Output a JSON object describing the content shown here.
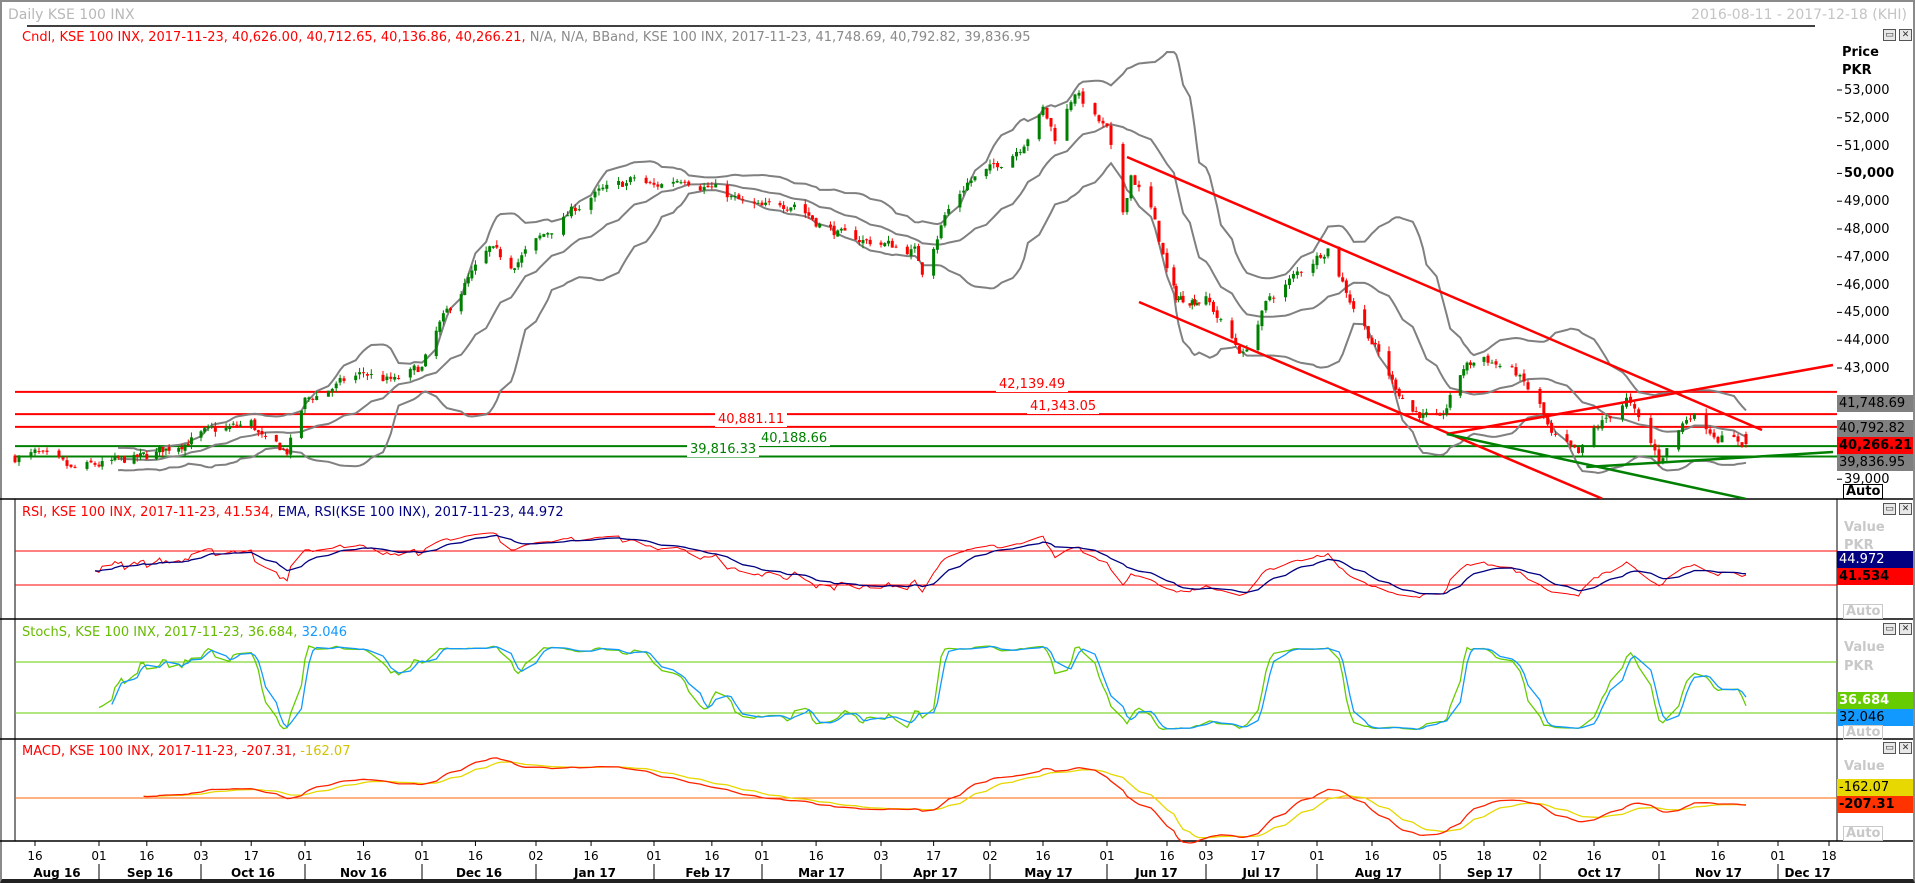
{
  "window": {
    "title": "Daily KSE 100 INX",
    "date_range": "2016-08-11 - 2017-12-18 (KHI)"
  },
  "main_panel": {
    "header_candle": "Cndl, KSE 100 INX, 2017-11-23, 40,626.00, 40,712.65, 40,136.86, 40,266.21,",
    "header_na": " N/A, N/A,",
    "header_bband": " BBand, KSE 100 INX, 2017-11-23, 41,748.69, 40,792.82, 39,836.95",
    "axis_title": "Price",
    "axis_unit": "PKR",
    "axis_ticks": [
      "53,000",
      "52,000",
      "51,000",
      "50,000",
      "49,000",
      "48,000",
      "47,000",
      "46,000",
      "45,000",
      "44,000",
      "43,000",
      "39,000"
    ],
    "bb_upper": "41,748.69",
    "bb_mid": "40,792.82",
    "last_close": "40,266.21",
    "bb_lower": "39,836.95",
    "auto_label": "Auto",
    "levels": [
      {
        "value": 42139.49,
        "label": "42,139.49",
        "color": "#ff0000"
      },
      {
        "value": 41343.05,
        "label": "41,343.05",
        "color": "#ff0000"
      },
      {
        "value": 40881.11,
        "label": "40,881.11",
        "color": "#ff0000"
      },
      {
        "value": 40188.66,
        "label": "40,188.66",
        "color": "#008000"
      },
      {
        "value": 39816.33,
        "label": "39,816.33",
        "color": "#008000"
      }
    ]
  },
  "rsi_panel": {
    "header_rsi": "RSI, KSE 100 INX, 2017-11-23, 41.534,",
    "header_ema": " EMA, RSI(KSE 100 INX), 2017-11-23, 44.972",
    "value_label": "Value",
    "unit": "PKR",
    "ema_value": "44.972",
    "rsi_value": "41.534",
    "auto_label": "Auto"
  },
  "stoch_panel": {
    "header_k": "StochS, KSE 100 INX, 2017-11-23, 36.684,",
    "header_d": " 32.046",
    "value_label": "Value",
    "unit": "PKR",
    "k_value": "36.684",
    "d_value": "32.046",
    "auto_label": "Auto"
  },
  "macd_panel": {
    "header_macd": "MACD, KSE 100 INX, 2017-11-23, -207.31,",
    "header_signal": " -162.07",
    "value_label": "Value",
    "signal_value": "-162.07",
    "macd_value": "-207.31",
    "auto_label": "Auto"
  },
  "x_axis": {
    "ticks": [
      [
        "2016-08-16",
        "16"
      ],
      [
        "2016-09-01",
        "01"
      ],
      [
        "2016-09-16",
        "16"
      ],
      [
        "2016-10-03",
        "03"
      ],
      [
        "2016-10-17",
        "17"
      ],
      [
        "2016-11-01",
        "01"
      ],
      [
        "2016-11-16",
        "16"
      ],
      [
        "2016-12-01",
        "01"
      ],
      [
        "2016-12-16",
        "16"
      ],
      [
        "2017-01-02",
        "02"
      ],
      [
        "2017-01-16",
        "16"
      ],
      [
        "2017-02-01",
        "01"
      ],
      [
        "2017-02-16",
        "16"
      ],
      [
        "2017-03-01",
        "01"
      ],
      [
        "2017-03-16",
        "16"
      ],
      [
        "2017-04-03",
        "03"
      ],
      [
        "2017-04-17",
        "17"
      ],
      [
        "2017-05-02",
        "02"
      ],
      [
        "2017-05-16",
        "16"
      ],
      [
        "2017-06-01",
        "01"
      ],
      [
        "2017-06-16",
        "16"
      ],
      [
        "2017-07-03",
        "03"
      ],
      [
        "2017-07-17",
        "17"
      ],
      [
        "2017-08-01",
        "01"
      ],
      [
        "2017-08-16",
        "16"
      ],
      [
        "2017-09-05",
        "05"
      ],
      [
        "2017-09-18",
        "18"
      ],
      [
        "2017-10-02",
        "02"
      ],
      [
        "2017-10-16",
        "16"
      ],
      [
        "2017-11-01",
        "01"
      ],
      [
        "2017-11-16",
        "16"
      ],
      [
        "2017-12-01",
        "01"
      ],
      [
        "2017-12-18",
        "18"
      ]
    ],
    "months": [
      [
        "2016-08-11",
        "2016-09-01",
        "Aug 16"
      ],
      [
        "2016-09-01",
        "2016-10-03",
        "Sep 16"
      ],
      [
        "2016-10-03",
        "2016-11-01",
        "Oct 16"
      ],
      [
        "2016-11-01",
        "2016-12-01",
        "Nov 16"
      ],
      [
        "2016-12-01",
        "2017-01-02",
        "Dec 16"
      ],
      [
        "2017-01-02",
        "2017-02-01",
        "Jan 17"
      ],
      [
        "2017-02-01",
        "2017-03-01",
        "Feb 17"
      ],
      [
        "2017-03-01",
        "2017-04-03",
        "Mar 17"
      ],
      [
        "2017-04-03",
        "2017-05-02",
        "Apr 17"
      ],
      [
        "2017-05-02",
        "2017-06-01",
        "May 17"
      ],
      [
        "2017-06-01",
        "2017-07-03",
        "Jun 17"
      ],
      [
        "2017-07-03",
        "2017-08-01",
        "Jul 17"
      ],
      [
        "2017-08-01",
        "2017-09-05",
        "Aug 17"
      ],
      [
        "2017-09-05",
        "2017-10-02",
        "Sep 17"
      ],
      [
        "2017-10-02",
        "2017-11-01",
        "Oct 17"
      ],
      [
        "2017-11-01",
        "2017-12-01",
        "Nov 17"
      ],
      [
        "2017-12-01",
        "2017-12-20",
        "Dec 17"
      ]
    ]
  },
  "chart_data": {
    "type": "candlestick",
    "symbol": "KSE 100 INX",
    "ylim": [
      38300,
      54000
    ],
    "last_candle": {
      "date": "2017-11-23",
      "open": 40626.0,
      "high": 40712.65,
      "low": 40136.86,
      "close": 40266.21
    },
    "close_path": [
      [
        "2016-08-11",
        39800
      ],
      [
        "2016-08-16",
        39900
      ],
      [
        "2016-08-25",
        39300
      ],
      [
        "2016-09-01",
        39500
      ],
      [
        "2016-09-16",
        39800
      ],
      [
        "2016-10-03",
        40600
      ],
      [
        "2016-10-17",
        41000
      ],
      [
        "2016-10-21",
        40300
      ],
      [
        "2016-10-27",
        40000
      ],
      [
        "2016-11-01",
        41800
      ],
      [
        "2016-11-08",
        42300
      ],
      [
        "2016-11-16",
        42800
      ],
      [
        "2016-11-24",
        42500
      ],
      [
        "2016-12-01",
        43000
      ],
      [
        "2016-12-06",
        44500
      ],
      [
        "2016-12-13",
        46000
      ],
      [
        "2016-12-20",
        47200
      ],
      [
        "2016-12-26",
        46700
      ],
      [
        "2017-01-02",
        47500
      ],
      [
        "2017-01-10",
        48500
      ],
      [
        "2017-01-16",
        49200
      ],
      [
        "2017-01-23",
        49500
      ],
      [
        "2017-01-27",
        49800
      ],
      [
        "2017-02-01",
        49500
      ],
      [
        "2017-02-09",
        49900
      ],
      [
        "2017-02-16",
        49500
      ],
      [
        "2017-02-24",
        48900
      ],
      [
        "2017-03-01",
        48700
      ],
      [
        "2017-03-10",
        49000
      ],
      [
        "2017-03-16",
        48300
      ],
      [
        "2017-03-24",
        47700
      ],
      [
        "2017-04-03",
        47500
      ],
      [
        "2017-04-12",
        47200
      ],
      [
        "2017-04-14",
        46500
      ],
      [
        "2017-04-20",
        48500
      ],
      [
        "2017-04-26",
        49700
      ],
      [
        "2017-05-02",
        50100
      ],
      [
        "2017-05-10",
        51000
      ],
      [
        "2017-05-16",
        52300
      ],
      [
        "2017-05-19",
        51300
      ],
      [
        "2017-05-24",
        53000
      ],
      [
        "2017-05-29",
        52000
      ],
      [
        "2017-06-01",
        51500
      ],
      [
        "2017-06-05",
        48500
      ],
      [
        "2017-06-07",
        50000
      ],
      [
        "2017-06-12",
        48700
      ],
      [
        "2017-06-16",
        46500
      ],
      [
        "2017-06-20",
        45500
      ],
      [
        "2017-07-03",
        45500
      ],
      [
        "2017-07-10",
        44000
      ],
      [
        "2017-07-13",
        43500
      ],
      [
        "2017-07-20",
        45500
      ],
      [
        "2017-07-28",
        46500
      ],
      [
        "2017-08-04",
        47400
      ],
      [
        "2017-08-10",
        45500
      ],
      [
        "2017-08-16",
        44000
      ],
      [
        "2017-08-22",
        42500
      ],
      [
        "2017-08-28",
        41500
      ],
      [
        "2017-09-05",
        41000
      ],
      [
        "2017-09-12",
        43000
      ],
      [
        "2017-09-18",
        43400
      ],
      [
        "2017-09-26",
        42800
      ],
      [
        "2017-10-02",
        41600
      ],
      [
        "2017-10-05",
        40500
      ],
      [
        "2017-10-12",
        39800
      ],
      [
        "2017-10-16",
        40700
      ],
      [
        "2017-10-24",
        41900
      ],
      [
        "2017-10-30",
        40200
      ],
      [
        "2017-11-01",
        39700
      ],
      [
        "2017-11-09",
        41400
      ],
      [
        "2017-11-16",
        40600
      ],
      [
        "2017-11-23",
        40266.21
      ]
    ],
    "trendlines": [
      {
        "from": [
          "2017-06-06",
          50590
        ],
        "to": [
          "2017-11-27",
          40770
        ],
        "color": "#ff0000"
      },
      {
        "from": [
          "2017-06-09",
          45374
        ],
        "to": [
          "2017-10-18",
          38300
        ],
        "color": "#ff0000"
      },
      {
        "from": [
          "2017-09-07",
          40626
        ],
        "to": [
          "2017-12-19",
          43108
        ],
        "color": "#ff0000"
      },
      {
        "from": [
          "2017-09-07",
          40626
        ],
        "to": [
          "2017-11-23",
          38290
        ],
        "color": "#008000"
      },
      {
        "from": [
          "2017-10-14",
          39439
        ],
        "to": [
          "2017-12-19",
          39978
        ],
        "color": "#008000"
      }
    ],
    "indicators": {
      "bband": {
        "period": 20,
        "stddev": 2
      },
      "rsi": {
        "period": 14,
        "levels": [
          70,
          30
        ],
        "ema": 9
      },
      "stoch": {
        "k": 14,
        "slow": 3,
        "d": 3,
        "levels": [
          80,
          20
        ]
      },
      "macd": {
        "fast": 12,
        "slow": 26,
        "signal": 9
      }
    }
  }
}
